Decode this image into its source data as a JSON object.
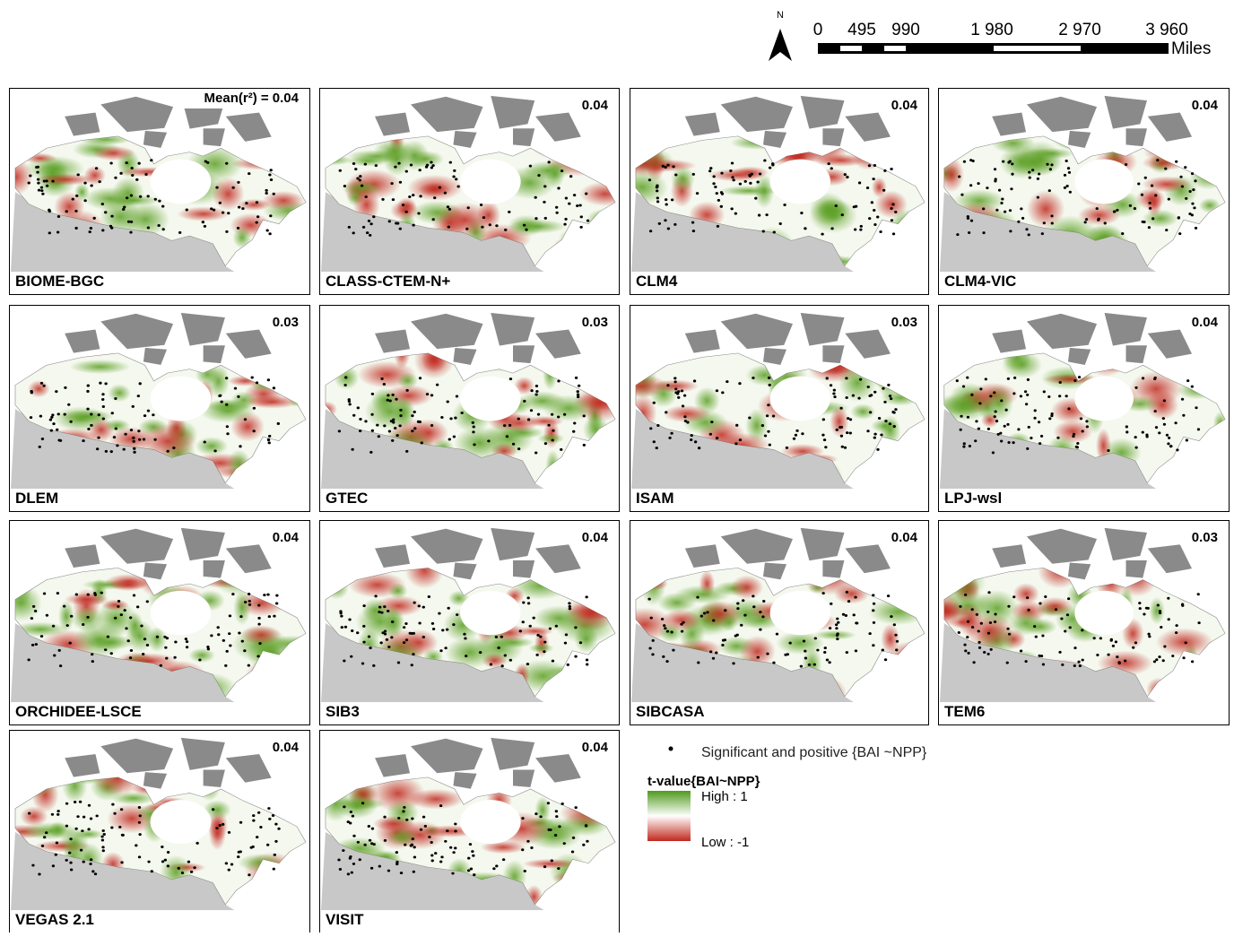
{
  "scale_bar": {
    "north": "N",
    "labels": [
      "0",
      "495",
      "990",
      "1 980",
      "2 970",
      "3 960"
    ],
    "unit": "Miles"
  },
  "panels": [
    {
      "label": "BIOME-BGC",
      "r2": "Mean(r²) = 0.04"
    },
    {
      "label": "CLASS-CTEM-N+",
      "r2": "0.04"
    },
    {
      "label": "CLM4",
      "r2": "0.04"
    },
    {
      "label": "CLM4-VIC",
      "r2": "0.04"
    },
    {
      "label": "DLEM",
      "r2": "0.03"
    },
    {
      "label": "GTEC",
      "r2": "0.03"
    },
    {
      "label": "ISAM",
      "r2": "0.03"
    },
    {
      "label": "LPJ-wsl",
      "r2": "0.04"
    },
    {
      "label": "ORCHIDEE-LSCE",
      "r2": "0.04"
    },
    {
      "label": "SIB3",
      "r2": "0.04"
    },
    {
      "label": "SIBCASA",
      "r2": "0.04"
    },
    {
      "label": "TEM6",
      "r2": "0.03"
    },
    {
      "label": "VEGAS 2.1",
      "r2": "0.04"
    },
    {
      "label": "VISIT",
      "r2": "0.04"
    }
  ],
  "legend": {
    "points": "Significant and positive {BAI ~NPP}",
    "title": "t-value{BAI~NPP}",
    "high": "High : 1",
    "low": "Low : -1"
  }
}
